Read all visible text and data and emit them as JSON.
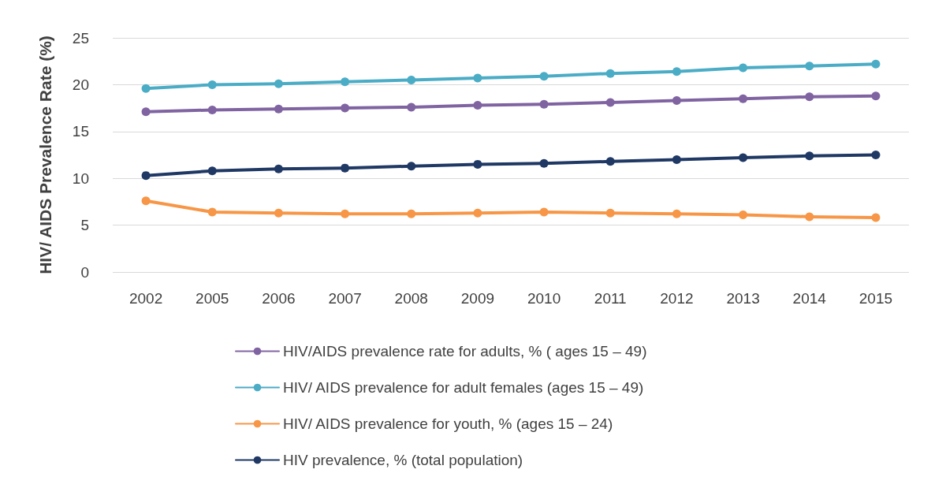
{
  "chart_data": {
    "type": "line",
    "ylabel": "HIV/ AIDS Prevalence Rate (%)",
    "categories": [
      "2002",
      "2005",
      "2006",
      "2007",
      "2008",
      "2009",
      "2010",
      "2011",
      "2012",
      "2013",
      "2014",
      "2015"
    ],
    "series": [
      {
        "name": "HIV/AIDS prevalence rate for adults, % ( ages 15 – 49)",
        "color": "#8064a2",
        "values": [
          17.1,
          17.3,
          17.4,
          17.5,
          17.6,
          17.8,
          17.9,
          18.1,
          18.3,
          18.5,
          18.7,
          18.8
        ]
      },
      {
        "name": "HIV/ AIDS prevalence for adult females (ages 15 – 49)",
        "color": "#4bacc6",
        "values": [
          19.6,
          20.0,
          20.1,
          20.3,
          20.5,
          20.7,
          20.9,
          21.2,
          21.4,
          21.8,
          22.0,
          22.2
        ]
      },
      {
        "name": "HIV/ AIDS prevalence for youth, % (ages 15 – 24)",
        "color": "#f79646",
        "values": [
          7.6,
          6.4,
          6.3,
          6.2,
          6.2,
          6.3,
          6.4,
          6.3,
          6.2,
          6.1,
          5.9,
          5.8
        ]
      },
      {
        "name": "HIV prevalence, % (total population)",
        "color": "#1f3864",
        "values": [
          10.3,
          10.8,
          11.0,
          11.1,
          11.3,
          11.5,
          11.6,
          11.8,
          12.0,
          12.2,
          12.4,
          12.5
        ]
      }
    ],
    "ylim": [
      0,
      25
    ],
    "yticks": [
      0,
      5,
      10,
      15,
      20,
      25
    ],
    "grid": "y",
    "legend": "bottom",
    "marker": "circle",
    "line_style": "solid"
  }
}
